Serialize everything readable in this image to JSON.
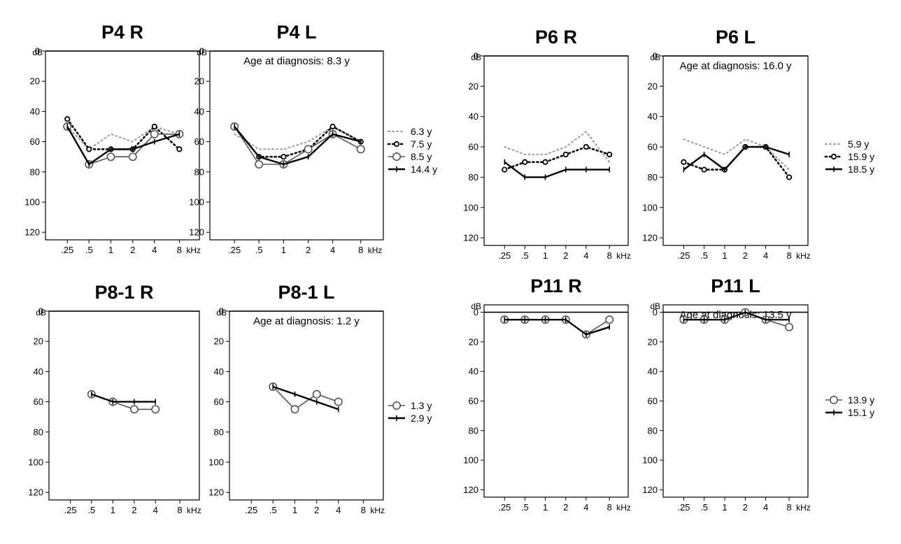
{
  "figure": {
    "y_unit": "dB",
    "x_unit": "kHz",
    "x_ticks": [
      ".25",
      ".5",
      "1",
      "2",
      "4",
      "8"
    ],
    "y_ticks": [
      "0",
      "20",
      "40",
      "60",
      "80",
      "100",
      "120"
    ]
  },
  "series_styles": {
    "dotted-grey": {
      "color": "#9a9a9a"
    },
    "dotted-black-open-dot": {
      "color": "#000000"
    },
    "solid-grey-open-circle": {
      "color": "#555555"
    },
    "solid-black-plus": {
      "color": "#000000"
    }
  },
  "chart_data": [
    {
      "type": "line",
      "title": "P4 R",
      "annotation": "",
      "x": [
        ".25",
        ".5",
        "1",
        "2",
        "4",
        "8"
      ],
      "ylim": [
        125,
        0
      ],
      "y_inverted": true,
      "grid": false,
      "series": [
        {
          "name": "6.3 y",
          "style": "dotted-grey",
          "values": [
            50,
            65,
            55,
            60,
            50,
            55
          ]
        },
        {
          "name": "7.5 y",
          "style": "dotted-black-open-dot",
          "values": [
            45,
            65,
            65,
            65,
            50,
            65
          ]
        },
        {
          "name": "8.5 y",
          "style": "solid-grey-open-circle",
          "values": [
            50,
            75,
            70,
            70,
            55,
            55
          ]
        },
        {
          "name": "14.4 y",
          "style": "solid-black-plus",
          "values": [
            50,
            75,
            65,
            65,
            60,
            55
          ]
        }
      ]
    },
    {
      "type": "line",
      "title": "P4 L",
      "annotation": "Age at diagnosis: 8.3 y",
      "x": [
        ".25",
        ".5",
        "1",
        "2",
        "4",
        "8"
      ],
      "ylim": [
        125,
        0
      ],
      "y_inverted": true,
      "grid": false,
      "legend": [
        "6.3 y",
        "7.5 y",
        "8.5 y",
        "14.4 y"
      ],
      "series": [
        {
          "name": "6.3 y",
          "style": "dotted-grey",
          "values": [
            55,
            65,
            65,
            60,
            50,
            60
          ]
        },
        {
          "name": "7.5 y",
          "style": "dotted-black-open-dot",
          "values": [
            50,
            70,
            70,
            65,
            50,
            60
          ]
        },
        {
          "name": "8.5 y",
          "style": "solid-grey-open-circle",
          "values": [
            50,
            75,
            75,
            65,
            55,
            65
          ]
        },
        {
          "name": "14.4 y",
          "style": "solid-black-plus",
          "values": [
            50,
            70,
            75,
            70,
            55,
            60
          ]
        }
      ]
    },
    {
      "type": "line",
      "title": "P6 R",
      "annotation": "",
      "x": [
        ".25",
        ".5",
        "1",
        "2",
        "4",
        "8"
      ],
      "ylim": [
        125,
        0
      ],
      "y_inverted": true,
      "grid": false,
      "series": [
        {
          "name": "5.9 y",
          "style": "dotted-grey",
          "values": [
            60,
            65,
            65,
            60,
            50,
            70
          ]
        },
        {
          "name": "15.9 y",
          "style": "dotted-black-open-dot",
          "values": [
            75,
            70,
            70,
            65,
            60,
            65
          ]
        },
        {
          "name": "18.5 y",
          "style": "solid-black-plus",
          "values": [
            70,
            80,
            80,
            75,
            75,
            75
          ]
        }
      ]
    },
    {
      "type": "line",
      "title": "P6 L",
      "annotation": "Age at diagnosis: 16.0 y",
      "x": [
        ".25",
        ".5",
        "1",
        "2",
        "4",
        "8"
      ],
      "ylim": [
        125,
        0
      ],
      "y_inverted": true,
      "grid": false,
      "legend": [
        "5.9 y",
        "15.9 y",
        "18.5 y"
      ],
      "series": [
        {
          "name": "5.9 y",
          "style": "dotted-grey",
          "values": [
            55,
            60,
            65,
            55,
            60,
            75
          ]
        },
        {
          "name": "15.9 y",
          "style": "dotted-black-open-dot",
          "values": [
            70,
            75,
            75,
            60,
            60,
            80
          ]
        },
        {
          "name": "18.5 y",
          "style": "solid-black-plus",
          "values": [
            75,
            65,
            75,
            60,
            60,
            65
          ]
        }
      ]
    },
    {
      "type": "line",
      "title": "P8-1 R",
      "annotation": "",
      "x": [
        ".25",
        ".5",
        "1",
        "2",
        "4",
        "8"
      ],
      "ylim": [
        125,
        0
      ],
      "y_inverted": true,
      "grid": false,
      "series": [
        {
          "name": "1.3 y",
          "style": "solid-grey-open-circle",
          "values": [
            null,
            55,
            60,
            65,
            65,
            null
          ]
        },
        {
          "name": "2.9 y",
          "style": "solid-black-plus",
          "values": [
            null,
            55,
            60,
            60,
            60,
            null
          ]
        }
      ]
    },
    {
      "type": "line",
      "title": "P8-1 L",
      "annotation": "Age at diagnosis: 1.2 y",
      "x": [
        ".25",
        ".5",
        "1",
        "2",
        "4",
        "8"
      ],
      "ylim": [
        125,
        0
      ],
      "y_inverted": true,
      "grid": false,
      "legend": [
        "1.3 y",
        "2.9 y"
      ],
      "series": [
        {
          "name": "1.3 y",
          "style": "solid-grey-open-circle",
          "values": [
            null,
            50,
            65,
            55,
            60,
            null
          ]
        },
        {
          "name": "2.9 y",
          "style": "solid-black-plus",
          "values": [
            null,
            50,
            55,
            60,
            65,
            null
          ]
        }
      ]
    },
    {
      "type": "line",
      "title": "P11 R",
      "annotation": "",
      "x": [
        ".25",
        ".5",
        "1",
        "2",
        "4",
        "8"
      ],
      "ylim": [
        125,
        -5
      ],
      "y_inverted": true,
      "grid": false,
      "series": [
        {
          "name": "13.9 y",
          "style": "solid-grey-open-circle",
          "values": [
            5,
            5,
            5,
            5,
            15,
            5
          ]
        },
        {
          "name": "15.1 y",
          "style": "solid-black-plus",
          "values": [
            5,
            5,
            5,
            5,
            15,
            10
          ]
        }
      ]
    },
    {
      "type": "line",
      "title": "P11 L",
      "annotation": "Age at diagnosis: 13.5 y",
      "x": [
        ".25",
        ".5",
        "1",
        "2",
        "4",
        "8"
      ],
      "ylim": [
        125,
        -5
      ],
      "y_inverted": true,
      "grid": false,
      "legend": [
        "13.9 y",
        "15.1 y"
      ],
      "series": [
        {
          "name": "13.9 y",
          "style": "solid-grey-open-circle",
          "values": [
            5,
            5,
            5,
            0,
            5,
            10
          ]
        },
        {
          "name": "15.1 y",
          "style": "solid-black-plus",
          "values": [
            5,
            5,
            5,
            0,
            5,
            5
          ]
        }
      ]
    }
  ]
}
